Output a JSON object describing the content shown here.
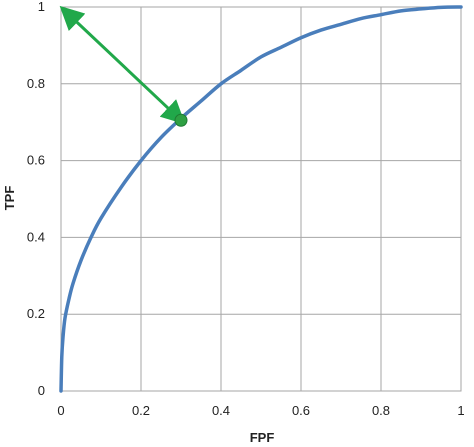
{
  "chart_data": {
    "type": "line",
    "title": "",
    "xlabel": "FPF",
    "ylabel": "TPF",
    "xlim": [
      0,
      1
    ],
    "ylim": [
      0,
      1
    ],
    "x_ticks": [
      "0",
      "0.2",
      "0.4",
      "0.6",
      "0.8",
      "1"
    ],
    "y_ticks": [
      "0",
      "0.2",
      "0.4",
      "0.6",
      "0.8",
      "1"
    ],
    "grid": true,
    "series": [
      {
        "color": "#4a7ebb",
        "x": [
          0,
          0.002,
          0.005,
          0.01,
          0.02,
          0.03,
          0.05,
          0.075,
          0.1,
          0.15,
          0.2,
          0.25,
          0.3,
          0.35,
          0.4,
          0.45,
          0.5,
          0.55,
          0.6,
          0.65,
          0.7,
          0.75,
          0.8,
          0.85,
          0.9,
          0.95,
          1.0
        ],
        "y": [
          0,
          0.09,
          0.14,
          0.19,
          0.24,
          0.28,
          0.34,
          0.4,
          0.45,
          0.53,
          0.6,
          0.66,
          0.71,
          0.755,
          0.8,
          0.835,
          0.87,
          0.895,
          0.92,
          0.94,
          0.955,
          0.97,
          0.98,
          0.99,
          0.995,
          0.999,
          1.0
        ]
      }
    ],
    "marker": {
      "x": 0.3,
      "y": 0.705,
      "color": "#2ea043"
    },
    "arrow": {
      "from": [
        0.3,
        0.705
      ],
      "to": [
        0,
        1
      ],
      "color": "#21a84a"
    }
  }
}
